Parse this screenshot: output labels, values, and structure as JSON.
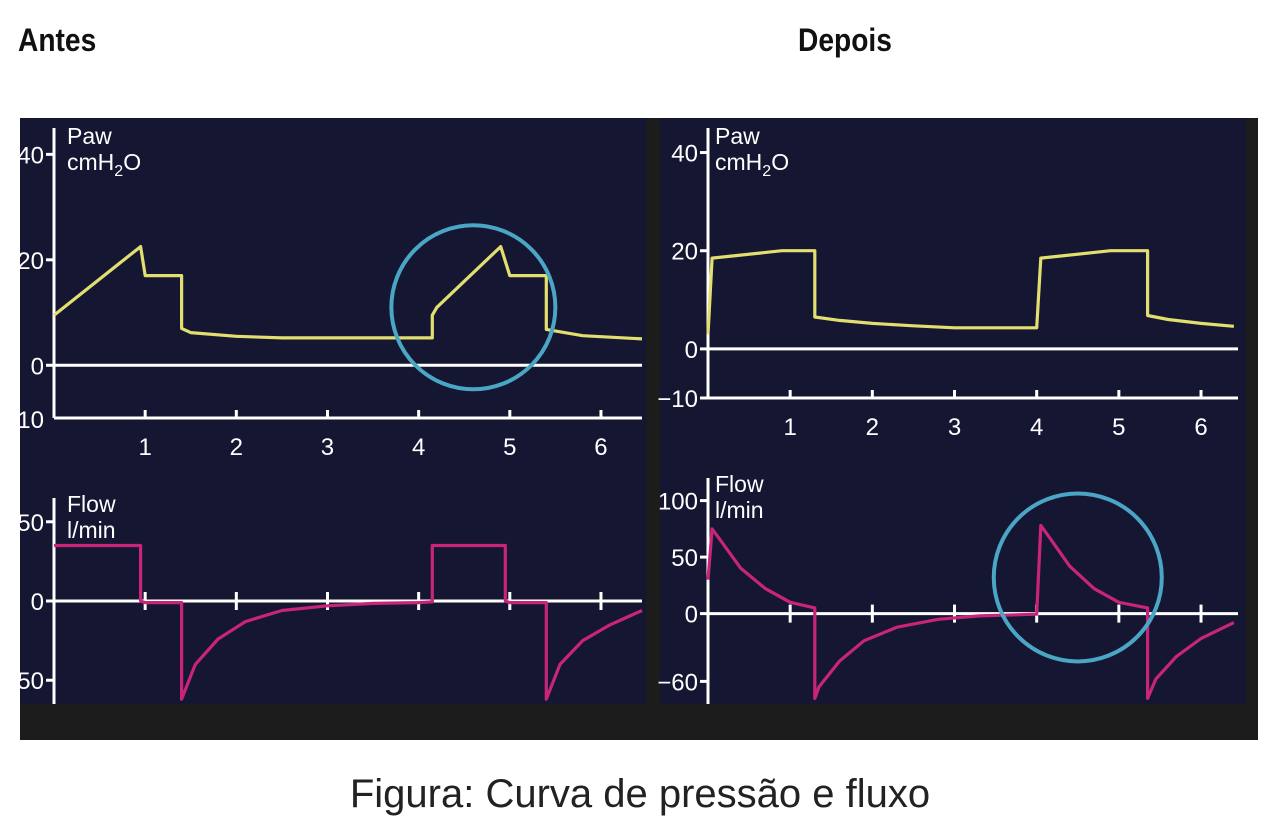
{
  "headings": {
    "left": "Antes",
    "right": "Depois"
  },
  "caption": "Figura: Curva de pressão e fluxo",
  "colors": {
    "panel_background": "#141632",
    "frame": "#1c1c1c",
    "axis": "#ffffff",
    "pressure_curve": "#e2de70",
    "flow_curve": "#c8257a",
    "highlight_circle": "#4aa6c4"
  },
  "chart_data": [
    {
      "id": "antes-paw",
      "type": "line",
      "ylabel_line1": "Paw",
      "ylabel_line2": "cmH",
      "ylabel_sub": "2",
      "ylabel_suffix": "O",
      "xlim": [
        0,
        6.45
      ],
      "ylim": [
        -10,
        45
      ],
      "yticks": [
        40,
        20,
        0
      ],
      "ytick_labels": [
        "40",
        "20",
        "0"
      ],
      "ylow_label": "10",
      "xticks": [
        1,
        2,
        3,
        4,
        5,
        6
      ],
      "xtick_labels": [
        "1",
        "2",
        "3",
        "4",
        "5",
        "6"
      ],
      "series": [
        {
          "x": [
            0,
            0.95,
            1.0,
            1.4,
            1.4,
            1.5,
            2.0,
            2.5,
            4.15,
            4.15,
            4.2,
            4.9,
            5.0,
            5.4,
            5.4,
            5.8,
            6.45
          ],
          "y": [
            9.5,
            22.5,
            17,
            17,
            7,
            6.2,
            5.5,
            5.2,
            5.2,
            9.5,
            11,
            22.5,
            17,
            17,
            6.8,
            5.6,
            5.0
          ]
        }
      ],
      "highlight": {
        "x": 4.6,
        "y": 11,
        "label": ""
      }
    },
    {
      "id": "antes-flow",
      "type": "line",
      "ylabel_line1": "Flow",
      "ylabel_line2": "l/min",
      "xlim": [
        0,
        6.45
      ],
      "ylim": [
        -65,
        65
      ],
      "yticks": [
        50,
        0,
        -50
      ],
      "ytick_labels": [
        "50",
        "0",
        "50"
      ],
      "xticks": [
        1,
        2,
        3,
        4,
        5,
        6
      ],
      "series": [
        {
          "x": [
            0,
            0.95,
            0.95,
            1.0,
            1.4,
            1.4,
            1.55,
            1.8,
            2.1,
            2.5,
            3.0,
            3.5,
            4.0,
            4.15,
            4.15,
            4.95,
            4.95,
            5.0,
            5.4,
            5.4,
            5.55,
            5.8,
            6.1,
            6.45
          ],
          "y": [
            35,
            35,
            0,
            -1,
            -1,
            -62,
            -40,
            -24,
            -13,
            -6,
            -3,
            -1.5,
            -1,
            -0.5,
            35,
            35,
            0,
            -1,
            -1,
            -62,
            -40,
            -25,
            -15,
            -6
          ]
        }
      ]
    },
    {
      "id": "depois-paw",
      "type": "line",
      "ylabel_line1": "Paw",
      "ylabel_line2": "cmH",
      "ylabel_sub": "2",
      "ylabel_suffix": "O",
      "xlim": [
        0,
        6.45
      ],
      "ylim": [
        -10,
        45
      ],
      "yticks": [
        40,
        20,
        0,
        -10
      ],
      "ytick_labels": [
        "40",
        "20",
        "0",
        "−10"
      ],
      "xticks": [
        1,
        2,
        3,
        4,
        5,
        6
      ],
      "xtick_labels": [
        "1",
        "2",
        "3",
        "4",
        "5",
        "6"
      ],
      "series": [
        {
          "x": [
            0,
            0.05,
            0.9,
            1.3,
            1.3,
            1.6,
            2.0,
            2.5,
            3.0,
            3.5,
            4.0,
            4.05,
            4.9,
            5.35,
            5.35,
            5.6,
            6.0,
            6.4
          ],
          "y": [
            3,
            18.5,
            20,
            20,
            6.5,
            5.8,
            5.2,
            4.7,
            4.3,
            4.3,
            4.3,
            18.5,
            20,
            20,
            6.8,
            6,
            5.2,
            4.6
          ]
        }
      ]
    },
    {
      "id": "depois-flow",
      "type": "line",
      "ylabel_line1": "Flow",
      "ylabel_line2": "l/min",
      "xlim": [
        0,
        6.45
      ],
      "ylim": [
        -80,
        120
      ],
      "yticks": [
        100,
        50,
        0,
        -60
      ],
      "ytick_labels": [
        "100",
        "50",
        "0",
        "−60"
      ],
      "xticks": [
        1,
        2,
        3,
        4,
        5,
        6
      ],
      "series": [
        {
          "x": [
            0,
            0.05,
            0.15,
            0.4,
            0.7,
            1.0,
            1.3,
            1.3,
            1.35,
            1.6,
            1.9,
            2.3,
            2.8,
            3.3,
            3.8,
            4.0,
            4.05,
            4.15,
            4.4,
            4.7,
            5.0,
            5.35,
            5.35,
            5.45,
            5.7,
            6.0,
            6.4
          ],
          "y": [
            30,
            75,
            65,
            40,
            22,
            10,
            5,
            -75,
            -65,
            -42,
            -24,
            -12,
            -5,
            -2,
            -1,
            -0.5,
            78,
            68,
            42,
            22,
            10,
            5,
            -75,
            -58,
            -38,
            -22,
            -8
          ]
        }
      ],
      "highlight": {
        "x": 4.5,
        "y": 32,
        "label": ""
      }
    }
  ]
}
